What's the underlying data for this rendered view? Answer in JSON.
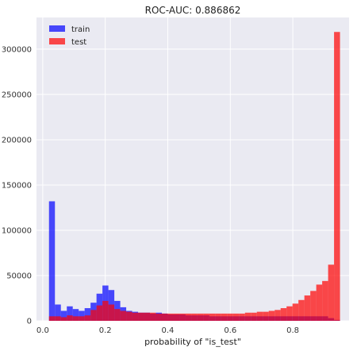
{
  "chart_data": {
    "type": "bar",
    "title": "ROC-AUC: 0.886862",
    "xlabel": "probability of \"is_test\"",
    "ylabel": "",
    "xlim": [
      -0.02,
      0.98
    ],
    "ylim": [
      0,
      335000
    ],
    "grid": true,
    "legend_position": "top-left",
    "x_ticks": [
      0.0,
      0.2,
      0.4,
      0.6,
      0.8
    ],
    "x_tick_labels": [
      "0.0",
      "0.2",
      "0.4",
      "0.6",
      "0.8"
    ],
    "y_ticks": [
      0,
      50000,
      100000,
      150000,
      200000,
      250000,
      300000
    ],
    "y_tick_labels": [
      "0",
      "50000",
      "100000",
      "150000",
      "200000",
      "250000",
      "300000"
    ],
    "bin_edges": [
      0.02,
      0.039,
      0.058,
      0.077,
      0.096,
      0.115,
      0.134,
      0.153,
      0.172,
      0.191,
      0.21,
      0.229,
      0.248,
      0.267,
      0.286,
      0.305,
      0.324,
      0.343,
      0.362,
      0.381,
      0.4,
      0.419,
      0.438,
      0.457,
      0.476,
      0.495,
      0.514,
      0.533,
      0.552,
      0.571,
      0.59,
      0.609,
      0.628,
      0.647,
      0.666,
      0.685,
      0.704,
      0.723,
      0.742,
      0.761,
      0.78,
      0.799,
      0.818,
      0.837,
      0.856,
      0.875,
      0.894,
      0.913,
      0.932,
      0.951
    ],
    "series": [
      {
        "name": "train",
        "color": "#0000ff",
        "opacity": 0.7,
        "values": [
          132000,
          18000,
          11000,
          16000,
          13000,
          11000,
          14000,
          20000,
          30000,
          39000,
          34000,
          22000,
          15000,
          11000,
          10000,
          9000,
          9000,
          8000,
          9000,
          8000,
          7000,
          7000,
          7000,
          6000,
          6000,
          6000,
          6000,
          5000,
          5000,
          5000,
          5000,
          5000,
          5000,
          5000,
          5000,
          5000,
          5000,
          5000,
          5000,
          5000,
          5000,
          5000,
          5000,
          5000,
          5000,
          5000,
          5000,
          3000,
          1000
        ]
      },
      {
        "name": "test",
        "color": "#ff0000",
        "opacity": 0.7,
        "values": [
          5000,
          5000,
          4000,
          6000,
          5000,
          5000,
          6000,
          12000,
          17000,
          22000,
          18000,
          13000,
          11000,
          10000,
          9000,
          9000,
          9000,
          9000,
          8000,
          8000,
          8000,
          8000,
          8000,
          8000,
          8000,
          8000,
          8000,
          8000,
          8000,
          8000,
          8000,
          8000,
          8000,
          9000,
          9000,
          10000,
          10000,
          11000,
          12000,
          14000,
          16000,
          19000,
          23000,
          28000,
          33000,
          40000,
          44000,
          62000,
          319000
        ]
      }
    ]
  }
}
